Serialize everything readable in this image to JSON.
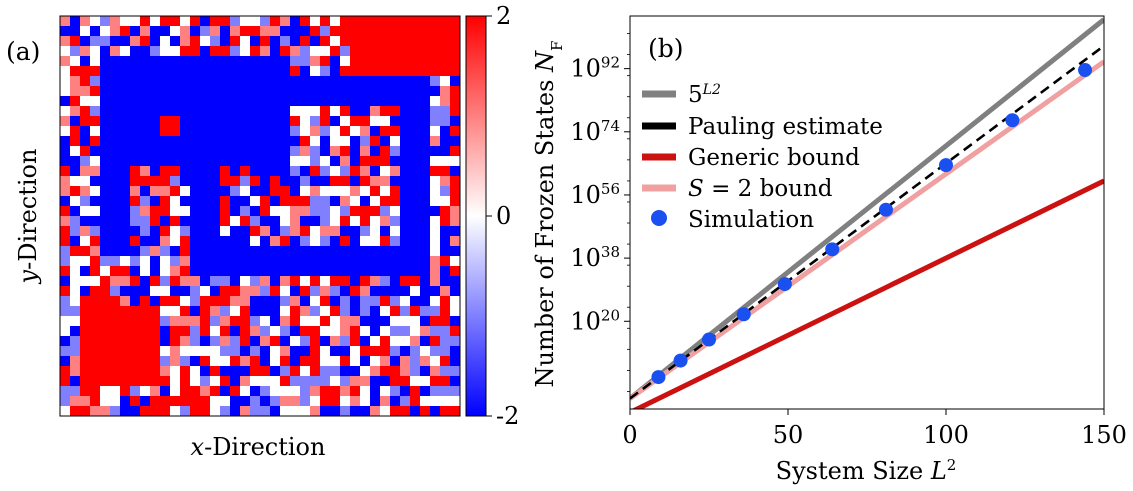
{
  "colors": {
    "blue": "#0000ff",
    "red": "#ff0000",
    "white": "#ffffff",
    "grey_line": "#808080",
    "pauling": "#000000",
    "generic": "#cc1111",
    "s2": "#f0a0a0",
    "sim": "#1a4ff0"
  },
  "panel_a": {
    "label": "(a)",
    "xlabel_italic": "x",
    "xlabel_rest": "-Direction",
    "ylabel_italic": "y",
    "ylabel_rest": "-Direction",
    "grid_size": 40,
    "random_seed": 7,
    "colorbar": {
      "ticks": [
        "2",
        "0",
        "-2"
      ],
      "vmin": -2,
      "vmax": 2
    },
    "frozen_regions": {
      "blue": [
        [
          4,
          4,
          23,
          15
        ],
        [
          4,
          4,
          7,
          24
        ],
        [
          4,
          12,
          23,
          15
        ],
        [
          13,
          12,
          16,
          26
        ],
        [
          13,
          6,
          37,
          9
        ],
        [
          34,
          6,
          37,
          26
        ],
        [
          13,
          23,
          37,
          26
        ],
        [
          21,
          4,
          23,
          15
        ]
      ],
      "red": [
        [
          29,
          0,
          40,
          6
        ],
        [
          2,
          29,
          10,
          37
        ],
        [
          10,
          10,
          12,
          12
        ]
      ]
    }
  },
  "chart_data": {
    "type": "line",
    "panel_label": "(b)",
    "xlabel": "System Size L^2",
    "ylabel": "Number of Frozen States N_F",
    "xlim": [
      0,
      150
    ],
    "ylim_log10": [
      -5,
      107
    ],
    "x_ticks": [
      "0",
      "50",
      "100",
      "150"
    ],
    "y_ticks": [
      "10^20",
      "10^38",
      "10^56",
      "10^74",
      "10^92"
    ],
    "y_tick_exponents": [
      20,
      38,
      56,
      74,
      92
    ],
    "legend_position": "top-left",
    "series": [
      {
        "name": "5^{L^2}",
        "kind": "line",
        "x": [
          0,
          150
        ],
        "log10_y": [
          -2,
          106
        ],
        "color": "#808080",
        "dashed": false
      },
      {
        "name": "Pauling estimate",
        "kind": "line",
        "x": [
          0,
          150
        ],
        "log10_y": [
          -2,
          98.5
        ],
        "color": "#000000",
        "dashed": true
      },
      {
        "name": "Generic bound",
        "kind": "line",
        "x": [
          0,
          150
        ],
        "log10_y": [
          -6,
          60
        ],
        "color": "#cc1111",
        "dashed": false
      },
      {
        "name": "S = 2 bound",
        "kind": "line",
        "x": [
          0,
          150
        ],
        "log10_y": [
          -2,
          94
        ],
        "color": "#f0a0a0",
        "dashed": false
      },
      {
        "name": "Simulation",
        "kind": "scatter",
        "x": [
          9,
          16,
          25,
          36,
          49,
          64,
          81,
          100,
          121,
          144
        ],
        "log10_y": [
          4.1,
          8.8,
          14.8,
          22.0,
          30.6,
          40.5,
          51.8,
          64.5,
          77.3,
          91.6
        ],
        "color": "#1a4ff0"
      }
    ],
    "legend_labels": {
      "grey": "5",
      "grey_sup": "L2",
      "pauling": "Pauling estimate",
      "generic": "Generic bound",
      "s2_italic": "S",
      "s2_rest": " = 2 bound",
      "sim": "Simulation"
    },
    "xlabel_parts": {
      "text": "System Size ",
      "italic": "L",
      "sup": "2"
    },
    "ylabel_parts": {
      "text": "Number of Frozen States ",
      "italic": "N",
      "sub": "F"
    }
  }
}
